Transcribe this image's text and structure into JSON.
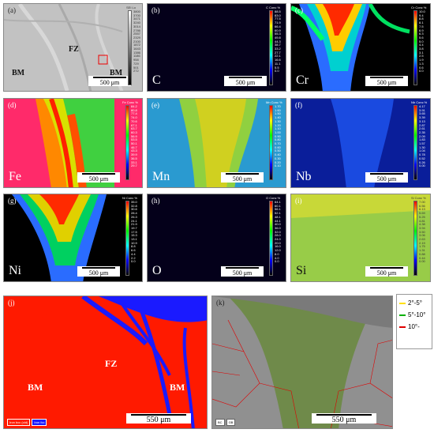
{
  "panels": {
    "a": {
      "label": "(a)",
      "scale": "500 μm",
      "regions": [
        "FZ",
        "BM",
        "BM"
      ],
      "cbar_title": "SEI Lo",
      "ticks": [
        "3800",
        "3700",
        "3471",
        "3240",
        "3014",
        "2786",
        "2557",
        "2329",
        "2100",
        "1872",
        "1643",
        "1386",
        "1186",
        "958",
        "729",
        "501",
        "272"
      ]
    },
    "b": {
      "label": "(b)",
      "element": "C",
      "scale": "500 μm",
      "cbar_title": "C Conc %",
      "ticks": [
        "88.5",
        "83.0",
        "77.5",
        "71.9",
        "66.4",
        "60.9",
        "55.3",
        "49.8",
        "44.3",
        "38.7",
        "33.2",
        "27.7",
        "22.1",
        "16.6",
        "11.1",
        "5.5",
        "0.0"
      ]
    },
    "c": {
      "label": "(c)",
      "element": "Cr",
      "scale": "500 μm",
      "cbar_title": "Cr Conc %",
      "ticks": [
        "10.0",
        "9.4",
        "8.8",
        "8.1",
        "7.5",
        "6.9",
        "6.3",
        "5.6",
        "5.0",
        "4.4",
        "3.8",
        "3.1",
        "2.5",
        "1.9",
        "1.3",
        "0.6",
        "0.0"
      ]
    },
    "d": {
      "label": "(d)",
      "element": "Fe",
      "scale": "500 μm",
      "cbar_title": "Fe Conc %",
      "ticks": [
        "84.2",
        "80.8",
        "77.4",
        "74.0",
        "70.6",
        "67.1",
        "63.7",
        "60.3",
        "56.9",
        "53.5",
        "50.1",
        "46.7",
        "43.3",
        "39.9",
        "36.5",
        "33.1",
        "29.7"
      ]
    },
    "e": {
      "label": "(e)",
      "element": "Mn",
      "scale": "500 μm",
      "cbar_title": "Mn Conc %",
      "ticks": [
        "1.70",
        "1.60",
        "1.50",
        "1.40",
        "1.30",
        "1.20",
        "1.10",
        "1.00",
        "0.90",
        "0.80",
        "0.70",
        "0.60",
        "0.50",
        "0.40",
        "0.30",
        "0.20",
        "0.10"
      ]
    },
    "f": {
      "label": "(f)",
      "element": "Nb",
      "scale": "500 μm",
      "cbar_title": "Nb Conc %",
      "ticks": [
        "4.17",
        "3.91",
        "3.65",
        "3.39",
        "3.13",
        "2.87",
        "2.61",
        "2.35",
        "2.09",
        "1.83",
        "1.57",
        "1.30",
        "1.04",
        "0.78",
        "0.52",
        "0.26",
        "0.00"
      ]
    },
    "g": {
      "label": "(g)",
      "element": "Ni",
      "scale": "500 μm",
      "cbar_title": "Ni Conc %",
      "ticks": [
        "35.0",
        "32.8",
        "30.6",
        "28.4",
        "26.3",
        "24.1",
        "21.9",
        "19.7",
        "17.5",
        "15.3",
        "13.1",
        "10.9",
        "8.8",
        "6.6",
        "4.4",
        "2.2",
        "0.0"
      ]
    },
    "h": {
      "label": "(h)",
      "element": "O",
      "scale": "500 μm",
      "cbar_title": "O Conc %",
      "ticks": [
        "64.1",
        "60.1",
        "56.1",
        "52.1",
        "48.1",
        "44.1",
        "40.0",
        "36.0",
        "32.0",
        "28.0",
        "24.0",
        "20.0",
        "16.0",
        "12.0",
        "8.0",
        "4.0",
        "0.0"
      ]
    },
    "i": {
      "label": "(i)",
      "element": "Si",
      "scale": "500 μm",
      "cbar_title": "Si Conc %",
      "ticks": [
        "7.00",
        "6.56",
        "6.13",
        "5.69",
        "5.25",
        "4.81",
        "4.38",
        "3.94",
        "3.50",
        "3.06",
        "2.63",
        "2.19",
        "1.75",
        "1.31",
        "0.88",
        "0.44",
        "0.00"
      ]
    },
    "j": {
      "label": "(j)",
      "scale": "550 μm",
      "regions": [
        "FZ",
        "BM",
        "BM"
      ],
      "legend": [
        "Iron bcc (old)",
        "Iron fcc"
      ]
    },
    "k": {
      "label": "(k)",
      "scale": "550 μm",
      "legend": [
        "2°-5°",
        "5°-10°",
        "10°-"
      ],
      "tags": [
        "BC",
        "GB"
      ]
    }
  },
  "colors": {
    "legend_yellow": "#ffe000",
    "legend_green": "#00b000",
    "legend_red": "#e00000",
    "bcc": "#ff1a00",
    "fcc": "#1a1aff"
  }
}
